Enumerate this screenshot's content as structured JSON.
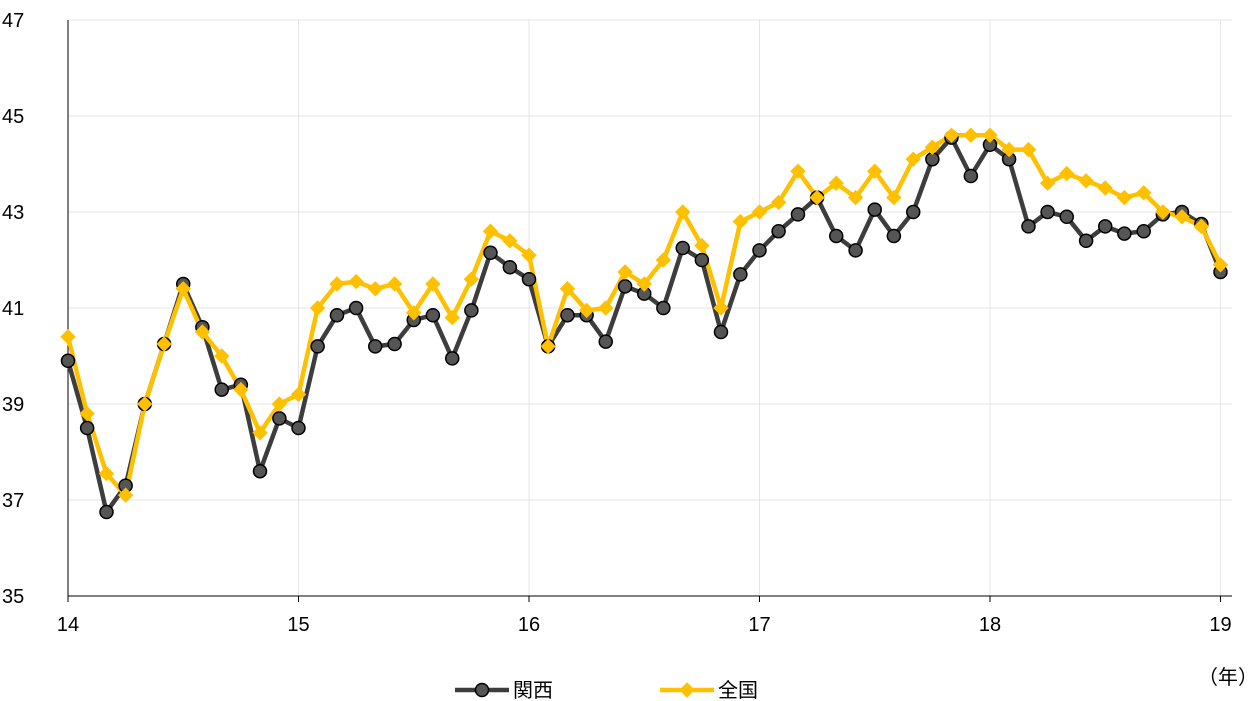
{
  "chart_data": {
    "type": "line",
    "xlabel": "（年）",
    "ylabel": "",
    "xlim": [
      14,
      19.05
    ],
    "ylim": [
      35,
      47
    ],
    "x_ticks": [
      14,
      15,
      16,
      17,
      18,
      19
    ],
    "y_ticks": [
      35,
      37,
      39,
      41,
      43,
      45,
      47
    ],
    "grid": true,
    "legend_position": "bottom",
    "x": [
      14.0,
      14.083,
      14.167,
      14.25,
      14.333,
      14.417,
      14.5,
      14.583,
      14.667,
      14.75,
      14.833,
      14.917,
      15.0,
      15.083,
      15.167,
      15.25,
      15.333,
      15.417,
      15.5,
      15.583,
      15.667,
      15.75,
      15.833,
      15.917,
      16.0,
      16.083,
      16.167,
      16.25,
      16.333,
      16.417,
      16.5,
      16.583,
      16.667,
      16.75,
      16.833,
      16.917,
      17.0,
      17.083,
      17.167,
      17.25,
      17.333,
      17.417,
      17.5,
      17.583,
      17.667,
      17.75,
      17.833,
      17.917,
      18.0,
      18.083,
      18.167,
      18.25,
      18.333,
      18.417,
      18.5,
      18.583,
      18.667,
      18.75,
      18.833,
      18.917,
      19.0
    ],
    "series": [
      {
        "name": "関西",
        "color": "#3d3d3d",
        "marker": "circle",
        "values": [
          39.9,
          38.5,
          36.75,
          37.3,
          39.0,
          40.25,
          41.5,
          40.6,
          39.3,
          39.4,
          37.6,
          38.7,
          38.5,
          40.2,
          40.85,
          41.0,
          40.2,
          40.25,
          40.75,
          40.85,
          39.95,
          40.95,
          42.15,
          41.85,
          41.6,
          40.2,
          40.85,
          40.85,
          40.3,
          41.45,
          41.3,
          41.0,
          42.25,
          42.0,
          40.5,
          41.7,
          42.2,
          42.6,
          42.95,
          43.3,
          42.5,
          42.2,
          43.05,
          42.5,
          43.0,
          44.1,
          44.55,
          43.75,
          44.4,
          44.1,
          42.7,
          43.0,
          42.9,
          42.4,
          42.7,
          42.55,
          42.6,
          42.95,
          43.0,
          42.75,
          41.75
        ]
      },
      {
        "name": "全国",
        "color": "#ffc000",
        "marker": "diamond",
        "values": [
          40.4,
          38.8,
          37.55,
          37.1,
          39.0,
          40.25,
          41.4,
          40.5,
          40.0,
          39.3,
          38.4,
          39.0,
          39.2,
          41.0,
          41.5,
          41.55,
          41.4,
          41.5,
          40.9,
          41.5,
          40.8,
          41.6,
          42.6,
          42.4,
          42.1,
          40.2,
          41.4,
          40.95,
          41.0,
          41.75,
          41.5,
          42.0,
          43.0,
          42.3,
          41.0,
          42.8,
          43.0,
          43.2,
          43.85,
          43.3,
          43.6,
          43.3,
          43.85,
          43.3,
          44.1,
          44.35,
          44.6,
          44.6,
          44.6,
          44.3,
          44.3,
          43.6,
          43.8,
          43.65,
          43.5,
          43.3,
          43.4,
          43.0,
          42.9,
          42.7,
          41.9
        ]
      }
    ]
  }
}
